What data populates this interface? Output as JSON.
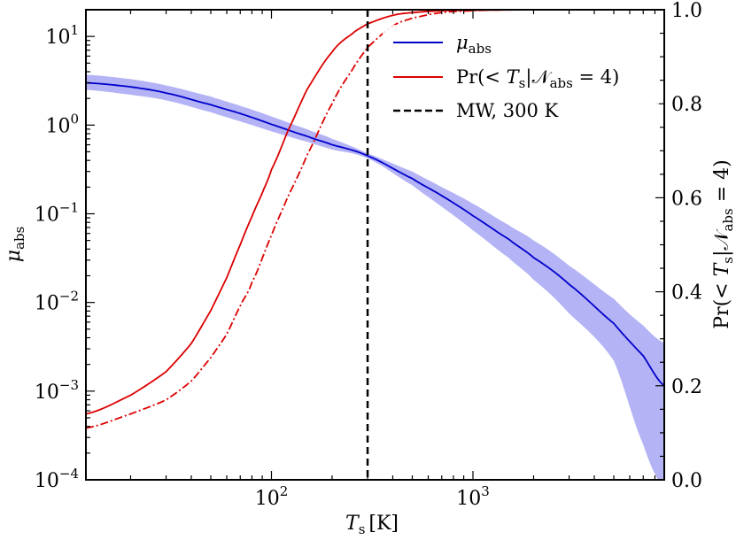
{
  "chart_data": {
    "type": "line",
    "x_axis": {
      "label": "T_s [K]",
      "label_main": "T",
      "label_sub": "s",
      "label_unit": "[K]",
      "scale": "log",
      "lim": [
        12,
        8900
      ],
      "ticks": [
        {
          "value": 100,
          "base": "10",
          "exp": "2"
        },
        {
          "value": 1000,
          "base": "10",
          "exp": "3"
        }
      ]
    },
    "y_left_axis": {
      "label": "μ_abs",
      "label_main": "μ",
      "label_sub": "abs",
      "scale": "log",
      "lim": [
        0.0001,
        20
      ],
      "ticks": [
        {
          "value": 0.0001,
          "base": "10",
          "exp": "−4"
        },
        {
          "value": 0.001,
          "base": "10",
          "exp": "−3"
        },
        {
          "value": 0.01,
          "base": "10",
          "exp": "−2"
        },
        {
          "value": 0.1,
          "base": "10",
          "exp": "−1"
        },
        {
          "value": 1,
          "base": "10",
          "exp": "0"
        },
        {
          "value": 10,
          "base": "10",
          "exp": "1"
        }
      ]
    },
    "y_right_axis": {
      "label": "Pr(< T_s|N_abs = 4)",
      "label_pre": "Pr(< ",
      "label_T": "T",
      "label_s": "s",
      "label_mid": "|",
      "label_N": "𝒩",
      "label_abs": "abs",
      "label_post": " = 4)",
      "scale": "linear",
      "lim": [
        0.0,
        1.0
      ],
      "ticks": [
        "0.0",
        "0.2",
        "0.4",
        "0.6",
        "0.8",
        "1.0"
      ]
    },
    "series": [
      {
        "name": "mu_abs",
        "axis": "left",
        "color": "#0000cc",
        "style": "solid",
        "x": [
          12,
          20,
          30,
          50,
          70,
          100,
          150,
          200,
          300,
          500,
          700,
          1000,
          1500,
          2000,
          3000,
          5000,
          7000,
          8900
        ],
        "y": [
          3.0,
          2.7,
          2.3,
          1.7,
          1.35,
          1.02,
          0.75,
          0.6,
          0.45,
          0.25,
          0.16,
          0.095,
          0.052,
          0.032,
          0.016,
          0.0058,
          0.0025,
          0.00115
        ]
      },
      {
        "name": "mu_abs_band",
        "axis": "left",
        "color": "#b3b3f5",
        "style": "band",
        "x": [
          12,
          20,
          30,
          50,
          70,
          100,
          150,
          200,
          300,
          500,
          700,
          1000,
          1500,
          2000,
          3000,
          5000,
          7000,
          8900
        ],
        "y_low": [
          2.5,
          2.2,
          1.9,
          1.4,
          1.1,
          0.85,
          0.65,
          0.53,
          0.42,
          0.21,
          0.12,
          0.065,
          0.032,
          0.018,
          0.0075,
          0.0022,
          0.00025,
          8e-05
        ],
        "y_high": [
          3.7,
          3.3,
          2.8,
          2.1,
          1.65,
          1.25,
          0.9,
          0.7,
          0.48,
          0.3,
          0.2,
          0.13,
          0.075,
          0.05,
          0.026,
          0.011,
          0.0055,
          0.0035
        ]
      },
      {
        "name": "Pr(< T_s|N_abs = 4)",
        "axis": "right",
        "color": "#dd0000",
        "style": "solid",
        "x": [
          12,
          20,
          30,
          40,
          50,
          60,
          70,
          80,
          90,
          100,
          120,
          150,
          200,
          250,
          300,
          400,
          500,
          700,
          1000,
          2000,
          8900
        ],
        "y": [
          0.14,
          0.18,
          0.23,
          0.29,
          0.36,
          0.43,
          0.5,
          0.56,
          0.61,
          0.66,
          0.74,
          0.83,
          0.91,
          0.948,
          0.97,
          0.988,
          0.994,
          0.998,
          0.999,
          1.0,
          1.0
        ]
      },
      {
        "name": "Pr (dash-dot)",
        "axis": "right",
        "color": "#dd0000",
        "style": "dashdot",
        "x": [
          12,
          20,
          30,
          40,
          50,
          60,
          70,
          80,
          100,
          120,
          150,
          200,
          250,
          300,
          400,
          500,
          700,
          1000,
          1500,
          2000,
          8900
        ],
        "y": [
          0.11,
          0.14,
          0.17,
          0.21,
          0.26,
          0.31,
          0.37,
          0.42,
          0.52,
          0.6,
          0.69,
          0.8,
          0.87,
          0.92,
          0.965,
          0.982,
          0.994,
          0.998,
          1.0,
          1.0,
          1.0
        ]
      },
      {
        "name": "MW, 300 K",
        "axis": "vertical",
        "color": "#000000",
        "style": "dashed",
        "x_value": 300
      }
    ],
    "legend": {
      "placement": "top-right",
      "entries": [
        {
          "name": "mu_abs",
          "main": "μ",
          "sub": "abs"
        },
        {
          "name": "Pr",
          "text_pre": "Pr(< ",
          "T": "T",
          "s": "s",
          "mid": "|",
          "N": "𝒩",
          "abs": "abs",
          "post": " = 4)"
        },
        {
          "name": "MW",
          "text": "MW, 300 K"
        }
      ]
    }
  }
}
